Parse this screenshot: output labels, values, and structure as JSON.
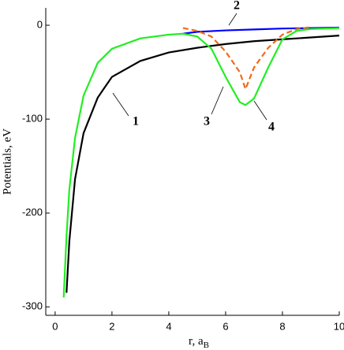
{
  "chart_data": {
    "type": "line",
    "xlabel": "r, a",
    "xlabel_sub": "B",
    "ylabel": "Potentials, eV",
    "xlim": [
      -0.33,
      10
    ],
    "ylim": [
      -309,
      18.5
    ],
    "xticks": [
      0,
      2,
      4,
      6,
      8,
      10
    ],
    "yticks": [
      0,
      -100,
      -200,
      -300
    ],
    "series": [
      {
        "name": "1",
        "color": "#000000",
        "dashed": false,
        "x": [
          0.4,
          0.5,
          0.7,
          1,
          1.5,
          2,
          3,
          4,
          5,
          6,
          7,
          8,
          9,
          10
        ],
        "values": [
          -285,
          -230,
          -164,
          -115,
          -77,
          -55,
          -38,
          -29,
          -24,
          -20,
          -17,
          -15,
          -13,
          -11
        ]
      },
      {
        "name": "2",
        "color": "#0000ff",
        "dashed": false,
        "x": [
          4.5,
          5,
          6,
          7,
          8,
          9,
          10
        ],
        "values": [
          -9,
          -7,
          -5.5,
          -4.5,
          -3.5,
          -3,
          -2.5
        ]
      },
      {
        "name": "3",
        "color": "#f26a1b",
        "dashed": true,
        "x": [
          4.5,
          5,
          5.5,
          6,
          6.5,
          6.7,
          7,
          7.5,
          8,
          8.5,
          9
        ],
        "values": [
          -3,
          -6,
          -12,
          -28,
          -50,
          -68,
          -45,
          -24,
          -10,
          -4,
          -2
        ]
      },
      {
        "name": "4",
        "color": "#22ee22",
        "dashed": false,
        "x": [
          0.3,
          0.4,
          0.5,
          0.7,
          1,
          1.5,
          2,
          3,
          4,
          4.5,
          5,
          5.5,
          6,
          6.5,
          6.7,
          7,
          7.5,
          8,
          8.5,
          9,
          10
        ],
        "values": [
          -290,
          -225,
          -175,
          -120,
          -75,
          -40,
          -25,
          -14,
          -10,
          -9,
          -12,
          -25,
          -55,
          -82,
          -85,
          -78,
          -45,
          -15,
          -6,
          -4,
          -3
        ]
      }
    ]
  }
}
